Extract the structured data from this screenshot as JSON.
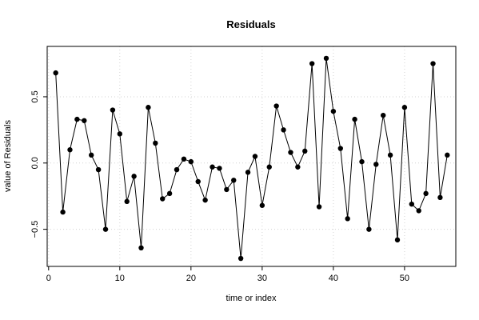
{
  "chart_data": {
    "type": "line",
    "title": "Residuals",
    "xlabel": "time or index",
    "ylabel": "value of Residuals",
    "xlim": [
      -0.2,
      57.2
    ],
    "ylim": [
      -0.78,
      0.88
    ],
    "xticks": [
      0,
      10,
      20,
      30,
      40,
      50
    ],
    "yticks": [
      -0.5,
      0.0,
      0.5
    ],
    "xtick_labels": [
      "0",
      "10",
      "20",
      "30",
      "40",
      "50"
    ],
    "ytick_labels": [
      "−0.5",
      "0.0",
      "0.5"
    ],
    "grid": true,
    "markers": "filled-circle",
    "x": [
      1,
      2,
      3,
      4,
      5,
      6,
      7,
      8,
      9,
      10,
      11,
      12,
      13,
      14,
      15,
      16,
      17,
      18,
      19,
      20,
      21,
      22,
      23,
      24,
      25,
      26,
      27,
      28,
      29,
      30,
      31,
      32,
      33,
      34,
      35,
      36,
      37,
      38,
      39,
      40,
      41,
      42,
      43,
      44,
      45,
      46,
      47,
      48,
      49,
      50,
      51,
      52,
      53,
      54,
      55,
      56
    ],
    "values": [
      0.68,
      -0.37,
      0.1,
      0.33,
      0.32,
      0.06,
      -0.05,
      -0.5,
      0.4,
      0.22,
      -0.29,
      -0.1,
      -0.64,
      0.42,
      0.15,
      -0.27,
      -0.23,
      -0.05,
      0.03,
      0.01,
      -0.14,
      -0.28,
      -0.03,
      -0.04,
      -0.2,
      -0.13,
      -0.72,
      -0.07,
      0.05,
      -0.32,
      -0.03,
      0.43,
      0.25,
      0.08,
      -0.03,
      0.09,
      0.75,
      -0.33,
      0.79,
      0.39,
      0.11,
      -0.42,
      0.33,
      0.01,
      -0.5,
      -0.01,
      0.36,
      0.06,
      -0.58,
      0.42,
      -0.31,
      -0.36,
      -0.23,
      0.75,
      -0.26,
      0.06
    ]
  }
}
